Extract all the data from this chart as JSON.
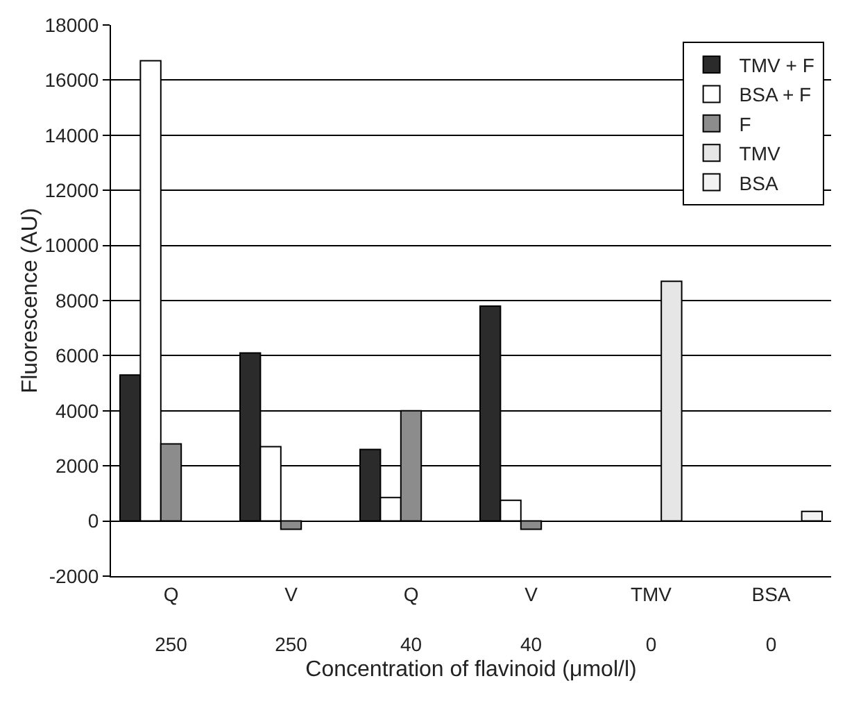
{
  "chart_data": {
    "type": "bar",
    "xlabel": "Concentration of flavinoid (μmol/l)",
    "ylabel": "Fluorescence (AU)",
    "categories": [
      "Q\n250",
      "V\n250",
      "Q\n40",
      "V\n40",
      "TMV\n0",
      "BSA\n0"
    ],
    "series": [
      {
        "name": "TMV + F",
        "color": "#2b2b2b",
        "values": [
          5300,
          6100,
          2600,
          7800,
          null,
          null
        ]
      },
      {
        "name": "BSA + F",
        "color": "#ffffff",
        "values": [
          16700,
          2700,
          850,
          750,
          null,
          null
        ]
      },
      {
        "name": "F",
        "color": "#8c8c8c",
        "values": [
          2800,
          -300,
          4000,
          -300,
          null,
          null
        ]
      },
      {
        "name": "TMV",
        "color": "#e6e6e6",
        "values": [
          null,
          null,
          null,
          null,
          8700,
          null
        ]
      },
      {
        "name": "BSA",
        "color": "#f2f2f2",
        "values": [
          null,
          null,
          null,
          null,
          null,
          350
        ]
      }
    ],
    "ylim": [
      -2000,
      18000
    ],
    "yticks": [
      -2000,
      0,
      2000,
      4000,
      6000,
      8000,
      10000,
      12000,
      14000,
      16000,
      18000
    ],
    "grid": "y",
    "legend": "top right"
  }
}
